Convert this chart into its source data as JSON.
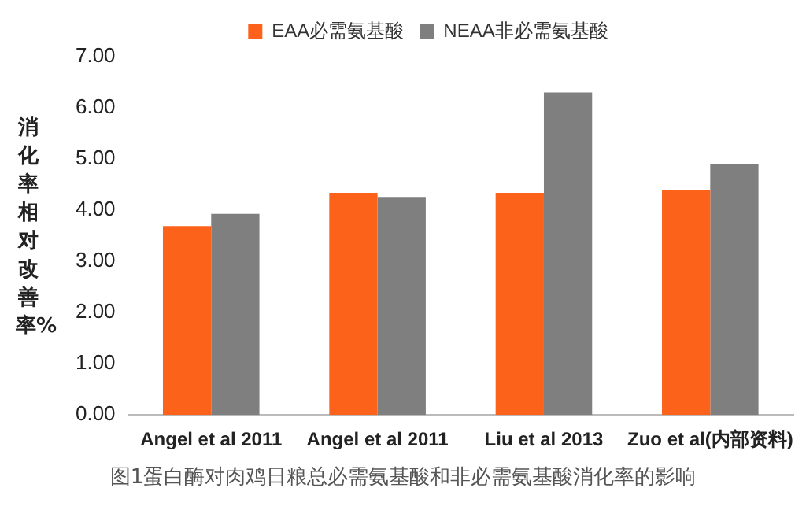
{
  "chart_data": {
    "type": "bar",
    "ylabel": "消化率相对改善率%",
    "categories": [
      "Angel et al 2011",
      "Angel et al 2011",
      "Liu et al 2013",
      "Zuo et al(内部资料)"
    ],
    "series": [
      {
        "name": "EAA必需氨基酸",
        "color": "#fc6219",
        "values": [
          3.69,
          4.34,
          4.34,
          4.39
        ]
      },
      {
        "name": "NEAA非必需氨基酸",
        "color": "#7f7f7f",
        "values": [
          3.93,
          4.26,
          6.3,
          4.9
        ]
      }
    ],
    "ylim": [
      0,
      7
    ],
    "yticks": [
      {
        "value": 0,
        "label": "0.00"
      },
      {
        "value": 1,
        "label": "1.00"
      },
      {
        "value": 2,
        "label": "2.00"
      },
      {
        "value": 3,
        "label": "3.00"
      },
      {
        "value": 4,
        "label": "4.00"
      },
      {
        "value": 5,
        "label": "5.00"
      },
      {
        "value": 6,
        "label": "6.00"
      },
      {
        "value": 7,
        "label": "7.00"
      }
    ],
    "grid": false,
    "legend": "top",
    "annotations": [
      "图1蛋白酶对肉鸡日粮总必需氨基酸和非必需氨基酸消化率的影响"
    ]
  }
}
